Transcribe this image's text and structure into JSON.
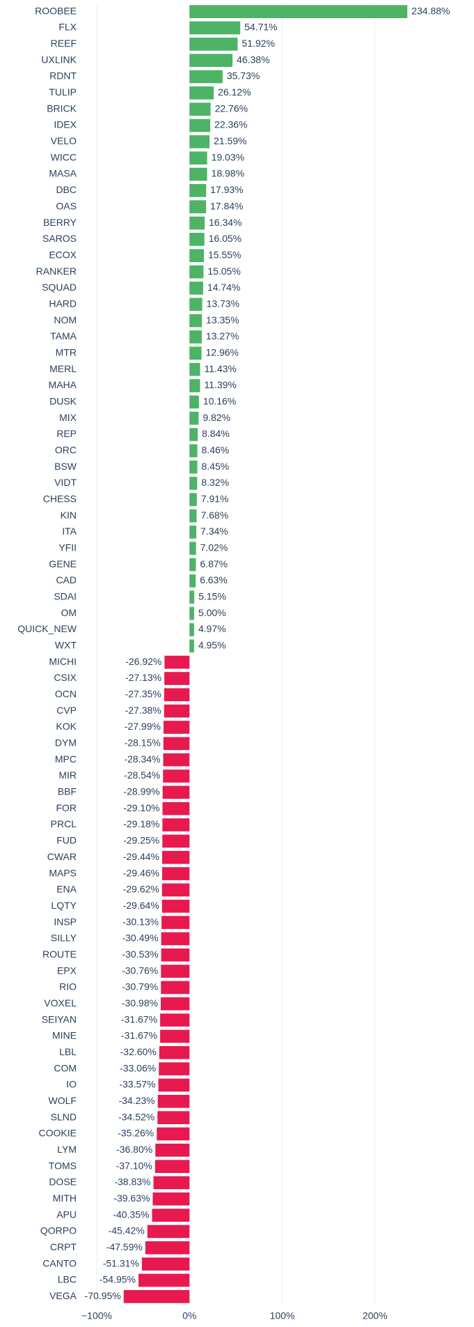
{
  "chart_data": {
    "type": "hbar",
    "colors": {
      "positive": "#4cb464",
      "negative": "#e8194e"
    },
    "categories": [
      "ROOBEE",
      "FLX",
      "REEF",
      "UXLINK",
      "RDNT",
      "TULIP",
      "BRICK",
      "IDEX",
      "VELO",
      "WICC",
      "MASA",
      "DBC",
      "OAS",
      "BERRY",
      "SAROS",
      "ECOX",
      "RANKER",
      "SQUAD",
      "HARD",
      "NOM",
      "TAMA",
      "MTR",
      "MERL",
      "MAHA",
      "DUSK",
      "MIX",
      "REP",
      "ORC",
      "BSW",
      "VIDT",
      "CHESS",
      "KIN",
      "ITA",
      "YFII",
      "GENE",
      "CAD",
      "SDAI",
      "OM",
      "QUICK_NEW",
      "WXT",
      "MICHI",
      "CSIX",
      "OCN",
      "CVP",
      "KOK",
      "DYM",
      "MPC",
      "MIR",
      "BBF",
      "FOR",
      "PRCL",
      "FUD",
      "CWAR",
      "MAPS",
      "ENA",
      "LQTY",
      "INSP",
      "SILLY",
      "ROUTE",
      "EPX",
      "RIO",
      "VOXEL",
      "SEIYAN",
      "MINE",
      "LBL",
      "COM",
      "IO",
      "WOLF",
      "SLND",
      "COOKIE",
      "LYM",
      "TOMS",
      "DOSE",
      "MITH",
      "APU",
      "QORPO",
      "CRPT",
      "CANTO",
      "LBC",
      "VEGA"
    ],
    "values": [
      234.88,
      54.71,
      51.92,
      46.38,
      35.73,
      26.12,
      22.76,
      22.36,
      21.59,
      19.03,
      18.98,
      17.93,
      17.84,
      16.34,
      16.05,
      15.55,
      15.05,
      14.74,
      13.73,
      13.35,
      13.27,
      12.96,
      11.43,
      11.39,
      10.16,
      9.82,
      8.84,
      8.46,
      8.45,
      8.32,
      7.91,
      7.68,
      7.34,
      7.02,
      6.87,
      6.63,
      5.15,
      5.0,
      4.97,
      4.95,
      -26.92,
      -27.13,
      -27.35,
      -27.38,
      -27.99,
      -28.15,
      -28.34,
      -28.54,
      -28.99,
      -29.1,
      -29.18,
      -29.25,
      -29.44,
      -29.46,
      -29.62,
      -29.64,
      -30.13,
      -30.49,
      -30.53,
      -30.76,
      -30.79,
      -30.98,
      -31.67,
      -31.67,
      -32.6,
      -33.06,
      -33.57,
      -34.23,
      -34.52,
      -35.26,
      -36.8,
      -37.1,
      -38.83,
      -39.63,
      -40.35,
      -45.42,
      -47.59,
      -51.31,
      -54.95,
      -70.95
    ],
    "value_labels": [
      "234.88%",
      "54.71%",
      "51.92%",
      "46.38%",
      "35.73%",
      "26.12%",
      "22.76%",
      "22.36%",
      "21.59%",
      "19.03%",
      "18.98%",
      "17.93%",
      "17.84%",
      "16.34%",
      "16.05%",
      "15.55%",
      "15.05%",
      "14.74%",
      "13.73%",
      "13.35%",
      "13.27%",
      "12.96%",
      "11.43%",
      "11.39%",
      "10.16%",
      "9.82%",
      "8.84%",
      "8.46%",
      "8.45%",
      "8.32%",
      "7.91%",
      "7.68%",
      "7.34%",
      "7.02%",
      "6.87%",
      "6.63%",
      "5.15%",
      "5.00%",
      "4.97%",
      "4.95%",
      "-26.92%",
      "-27.13%",
      "-27.35%",
      "-27.38%",
      "-27.99%",
      "-28.15%",
      "-28.34%",
      "-28.54%",
      "-28.99%",
      "-29.10%",
      "-29.18%",
      "-29.25%",
      "-29.44%",
      "-29.46%",
      "-29.62%",
      "-29.64%",
      "-30.13%",
      "-30.49%",
      "-30.53%",
      "-30.76%",
      "-30.79%",
      "-30.98%",
      "-31.67%",
      "-31.67%",
      "-32.60%",
      "-33.06%",
      "-33.57%",
      "-34.23%",
      "-34.52%",
      "-35.26%",
      "-36.80%",
      "-37.10%",
      "-38.83%",
      "-39.63%",
      "-40.35%",
      "-45.42%",
      "-47.59%",
      "-51.31%",
      "-54.95%",
      "-70.95%"
    ],
    "xlim": [
      -100,
      285
    ],
    "xticks": [
      {
        "value": -100,
        "label": "−100%"
      },
      {
        "value": 0,
        "label": "0%"
      },
      {
        "value": 100,
        "label": "100%"
      },
      {
        "value": 200,
        "label": "200%"
      }
    ],
    "grid": true
  }
}
